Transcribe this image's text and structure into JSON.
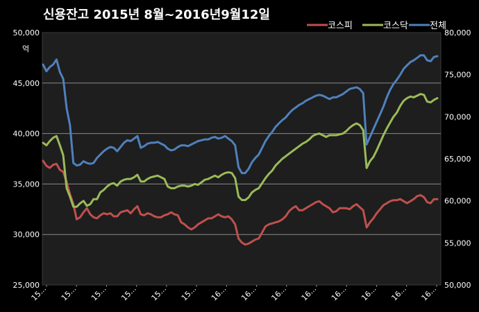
{
  "chart_data": {
    "type": "line",
    "title": "신용잔고  2015년 8월~2016년9월12일",
    "ylabel_left_unit": "억",
    "grid": "horizontal",
    "legend_position": "top-right",
    "x_tick_labels": [
      "15...",
      "15...",
      "15...",
      "15...",
      "15...",
      "15...",
      "16...",
      "16...",
      "16...",
      "16...",
      "16...",
      "16...",
      "16...",
      "16..."
    ],
    "y_left": {
      "range": [
        25000,
        50000
      ],
      "ticks": [
        "25,000",
        "30,000",
        "35,000",
        "40,000",
        "45,000",
        "50,000"
      ]
    },
    "y_right": {
      "range": [
        50000,
        80000
      ],
      "ticks": [
        "50,000",
        "55,000",
        "60,000",
        "65,000",
        "70,000",
        "75,000",
        "80,000"
      ]
    },
    "series": [
      {
        "name": "코스피",
        "axis": "left",
        "color": "#c0504d",
        "values": [
          37300,
          36800,
          36600,
          36900,
          37000,
          36400,
          36200,
          35200,
          34000,
          33000,
          31500,
          31700,
          32200,
          32600,
          32000,
          31700,
          31600,
          31900,
          32100,
          32000,
          32100,
          31800,
          31800,
          32200,
          32300,
          32400,
          32100,
          32500,
          32800,
          32000,
          31900,
          32100,
          32000,
          31800,
          31700,
          31700,
          31900,
          32000,
          32200,
          32000,
          31900,
          31200,
          31000,
          30700,
          30500,
          30700,
          31000,
          31200,
          31400,
          31600,
          31600,
          31800,
          32000,
          31800,
          31700,
          31800,
          31500,
          31000,
          29600,
          29200,
          29000,
          29100,
          29300,
          29500,
          29600,
          30200,
          30800,
          31000,
          31100,
          31200,
          31300,
          31500,
          31800,
          32300,
          32600,
          32800,
          32400,
          32400,
          32600,
          32800,
          33000,
          33200,
          33300,
          33000,
          32800,
          32600,
          32200,
          32300,
          32600,
          32600,
          32600,
          32500,
          32800,
          33000,
          32700,
          32400,
          30700,
          31200,
          31600,
          32100,
          32500,
          32900,
          33100,
          33300,
          33400,
          33400,
          33500,
          33300,
          33100,
          33300,
          33500,
          33800,
          33900,
          33700,
          33200,
          33100,
          33500,
          33500
        ]
      },
      {
        "name": "코스닥",
        "axis": "right",
        "color": "#9bbb59",
        "values": [
          66900,
          66600,
          67100,
          67500,
          67700,
          66600,
          65400,
          61500,
          60500,
          59300,
          59300,
          59700,
          60000,
          59400,
          59600,
          60200,
          60200,
          61000,
          61300,
          61700,
          62000,
          62100,
          61800,
          62300,
          62500,
          62600,
          62600,
          62800,
          63100,
          62300,
          62300,
          62600,
          62800,
          62900,
          63000,
          62800,
          62600,
          61700,
          61500,
          61500,
          61700,
          61800,
          61800,
          61700,
          61800,
          62000,
          61900,
          62200,
          62500,
          62600,
          62800,
          63000,
          62800,
          63100,
          63300,
          63400,
          63300,
          62700,
          60500,
          60100,
          60100,
          60400,
          61000,
          61300,
          61500,
          62100,
          62700,
          63200,
          63600,
          64200,
          64600,
          65000,
          65300,
          65600,
          65900,
          66200,
          66500,
          66800,
          67000,
          67300,
          67700,
          67900,
          68000,
          67800,
          67600,
          67800,
          67800,
          67800,
          67900,
          68000,
          68300,
          68700,
          69000,
          69200,
          69000,
          68400,
          63900,
          64700,
          65200,
          66000,
          66900,
          67800,
          68600,
          69300,
          70000,
          70500,
          71300,
          71900,
          72200,
          72400,
          72300,
          72500,
          72700,
          72600,
          71800,
          71700,
          72000,
          72200
        ]
      },
      {
        "name": "전체",
        "axis": "right",
        "color": "#4f81bd",
        "values": [
          76200,
          75400,
          75900,
          76200,
          76800,
          75300,
          74500,
          71000,
          69000,
          64500,
          64200,
          64300,
          64700,
          64500,
          64400,
          64500,
          65100,
          65500,
          65900,
          66200,
          66400,
          66300,
          65900,
          66400,
          66900,
          67200,
          67100,
          67400,
          67700,
          66300,
          66500,
          66800,
          66900,
          66900,
          67000,
          66800,
          66600,
          66200,
          66000,
          66100,
          66400,
          66600,
          66600,
          66500,
          66700,
          66900,
          67100,
          67200,
          67300,
          67300,
          67500,
          67600,
          67400,
          67500,
          67700,
          67400,
          67100,
          66600,
          64000,
          63300,
          63300,
          63800,
          64600,
          65100,
          65500,
          66300,
          67100,
          67700,
          68200,
          68800,
          69200,
          69600,
          69900,
          70400,
          70800,
          71100,
          71400,
          71600,
          71900,
          72100,
          72300,
          72500,
          72600,
          72500,
          72300,
          72100,
          72300,
          72300,
          72500,
          72700,
          73000,
          73300,
          73400,
          73500,
          73300,
          72800,
          66700,
          67600,
          68500,
          69400,
          70300,
          71200,
          72300,
          73200,
          73900,
          74400,
          75000,
          75700,
          76100,
          76500,
          76700,
          77000,
          77300,
          77300,
          76700,
          76600,
          77100,
          77200
        ]
      }
    ]
  }
}
